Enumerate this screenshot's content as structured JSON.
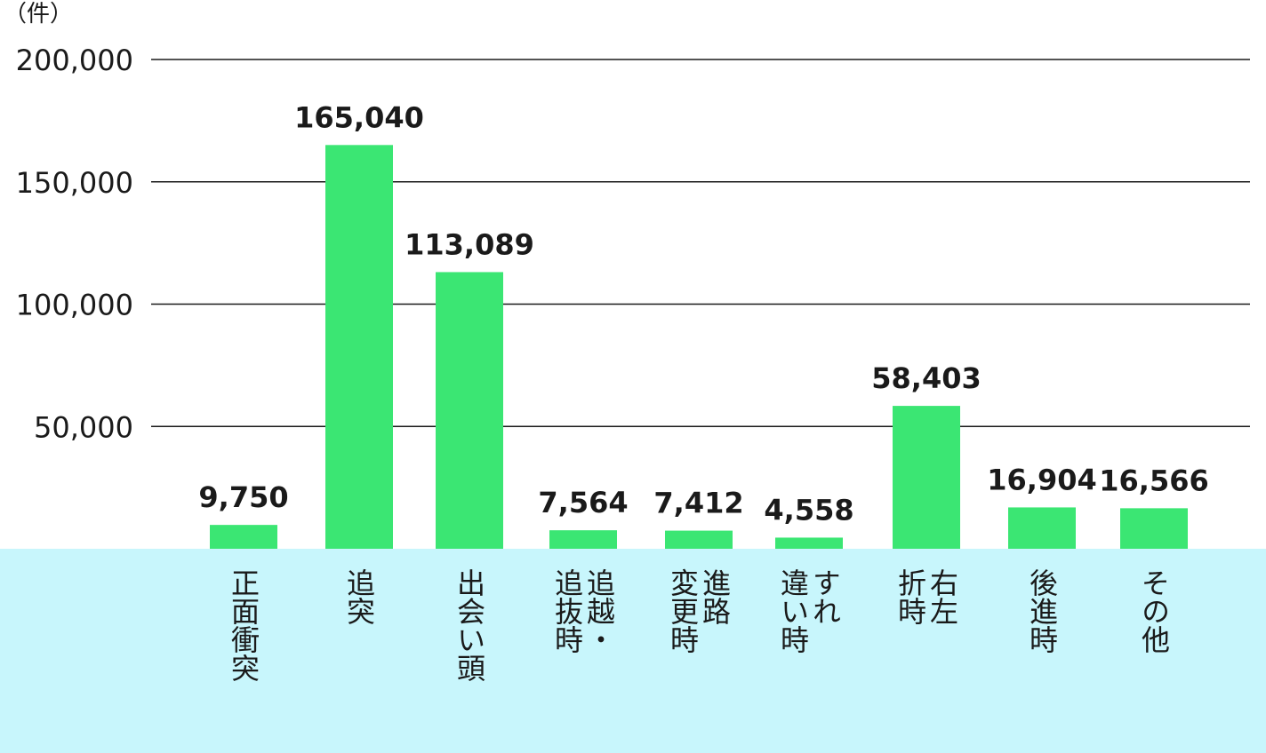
{
  "chart_data": {
    "type": "bar",
    "title": "",
    "unit_label": "（件）",
    "categories": [
      "正面衝突",
      "追突",
      "出会い頭",
      "追越・\n追抜時",
      "進路\n変更時",
      "すれ\n違い時",
      "右左\n折時",
      "後進時",
      "その他"
    ],
    "values": [
      9750,
      165040,
      113089,
      7564,
      7412,
      4558,
      58403,
      16904,
      16566
    ],
    "value_labels": [
      "9,750",
      "165,040",
      "113,089",
      "7,564",
      "7,412",
      "4,558",
      "58,403",
      "16,904",
      "16,566"
    ],
    "y_ticks": [
      50000,
      100000,
      150000,
      200000
    ],
    "y_tick_labels": [
      "50,000",
      "100,000",
      "150,000",
      "200,000"
    ],
    "ylim": [
      0,
      200000
    ],
    "grid": true,
    "colors": {
      "bar": "#3be673",
      "category_band": "#c8f6fc",
      "grid": "#1a1a1a",
      "text": "#1a1a1a"
    }
  }
}
